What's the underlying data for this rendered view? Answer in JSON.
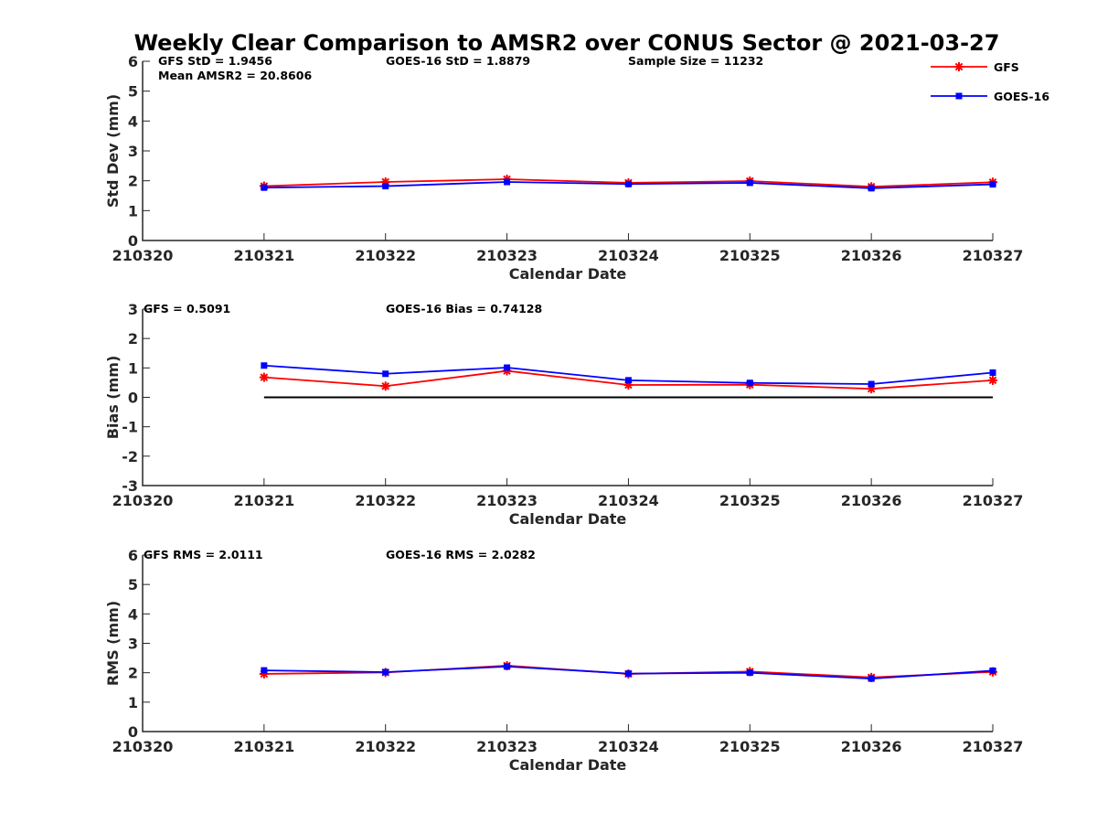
{
  "title": "Weekly Clear Comparison to AMSR2 over CONUS Sector @ 2021-03-27",
  "legend": [
    {
      "name": "GFS",
      "color": "#ff0000",
      "marker": "star"
    },
    {
      "name": "GOES-16",
      "color": "#0000ff",
      "marker": "square"
    }
  ],
  "chart_data": [
    {
      "type": "line",
      "xlabel": "Calendar Date",
      "ylabel": "Std Dev (mm)",
      "x_ticks": [
        "210320",
        "210321",
        "210322",
        "210323",
        "210324",
        "210325",
        "210326",
        "210327"
      ],
      "ylim": [
        0,
        6
      ],
      "y_ticks": [
        "0",
        "1",
        "2",
        "3",
        "4",
        "5",
        "6"
      ],
      "x": [
        "210321",
        "210322",
        "210323",
        "210324",
        "210325",
        "210326",
        "210327"
      ],
      "series": [
        {
          "name": "GFS",
          "values": [
            1.82,
            1.96,
            2.05,
            1.93,
            1.99,
            1.8,
            1.95
          ]
        },
        {
          "name": "GOES-16",
          "values": [
            1.77,
            1.82,
            1.96,
            1.89,
            1.93,
            1.75,
            1.88
          ]
        }
      ],
      "annotations": [
        "GFS StD = 1.9456",
        "GOES-16 StD = 1.8879",
        "Sample Size = 11232",
        "Mean AMSR2 = 20.8606"
      ],
      "zero_line": false
    },
    {
      "type": "line",
      "xlabel": "Calendar Date",
      "ylabel": "Bias (mm)",
      "x_ticks": [
        "210320",
        "210321",
        "210322",
        "210323",
        "210324",
        "210325",
        "210326",
        "210327"
      ],
      "ylim": [
        -3,
        3
      ],
      "y_ticks": [
        "-3",
        "-2",
        "-1",
        "0",
        "1",
        "2",
        "3"
      ],
      "x": [
        "210321",
        "210322",
        "210323",
        "210324",
        "210325",
        "210326",
        "210327"
      ],
      "series": [
        {
          "name": "GFS",
          "values": [
            0.68,
            0.38,
            0.9,
            0.42,
            0.43,
            0.29,
            0.58
          ]
        },
        {
          "name": "GOES-16",
          "values": [
            1.08,
            0.8,
            1.01,
            0.58,
            0.49,
            0.45,
            0.84
          ]
        }
      ],
      "annotations": [
        "GFS = 0.5091",
        "GOES-16 Bias  = 0.74128"
      ],
      "zero_line": true
    },
    {
      "type": "line",
      "xlabel": "Calendar Date",
      "ylabel": "RMS (mm)",
      "x_ticks": [
        "210320",
        "210321",
        "210322",
        "210323",
        "210324",
        "210325",
        "210326",
        "210327"
      ],
      "ylim": [
        0,
        6
      ],
      "y_ticks": [
        "0",
        "1",
        "2",
        "3",
        "4",
        "5",
        "6"
      ],
      "x": [
        "210321",
        "210322",
        "210323",
        "210324",
        "210325",
        "210326",
        "210327"
      ],
      "series": [
        {
          "name": "GFS",
          "values": [
            1.96,
            2.01,
            2.24,
            1.96,
            2.04,
            1.84,
            2.03
          ]
        },
        {
          "name": "GOES-16",
          "values": [
            2.08,
            2.02,
            2.21,
            1.97,
            2.0,
            1.8,
            2.07
          ]
        }
      ],
      "annotations": [
        "GFS RMS = 2.0111",
        "GOES-16 RMS = 2.0282"
      ],
      "zero_line": false
    }
  ]
}
